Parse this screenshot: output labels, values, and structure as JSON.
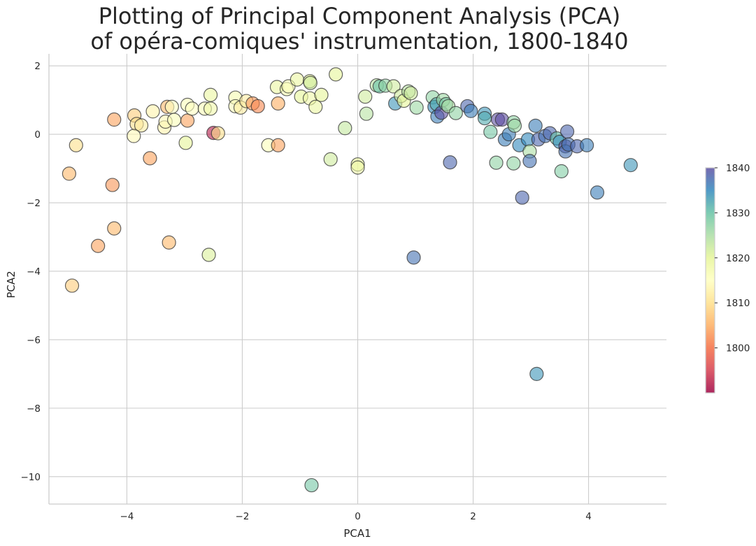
{
  "chart_data": {
    "type": "scatter",
    "title_lines": [
      "Plotting of Principal Component Analysis (PCA)",
      "of opéra-comiques' instrumentation, 1800-1840"
    ],
    "xlabel": "PCA1",
    "ylabel": "PCA2",
    "xlim": [
      -5.35,
      5.35
    ],
    "ylim": [
      -10.8,
      2.35
    ],
    "x_ticks": [
      -4,
      -2,
      0,
      2,
      4
    ],
    "x_tick_labels": [
      "−4",
      "−2",
      "0",
      "2",
      "4"
    ],
    "y_ticks": [
      2,
      0,
      -2,
      -4,
      -6,
      -8,
      -10
    ],
    "y_tick_labels": [
      "2",
      "0",
      "−2",
      "−4",
      "−6",
      "−8",
      "−10"
    ],
    "grid": true,
    "colormap": "Spectral",
    "colormap_stops": [
      "#9e0142",
      "#d53e4f",
      "#f46d43",
      "#fdae61",
      "#fee08b",
      "#ffffbf",
      "#e6f598",
      "#abdda4",
      "#66c2a5",
      "#3288bd",
      "#5e4fa2"
    ],
    "color_range": [
      1790,
      1840
    ],
    "colorbar": {
      "ticks": [
        1800,
        1810,
        1820,
        1830,
        1840
      ],
      "tick_labels": [
        "1800",
        "1810",
        "1820",
        "1830",
        "1840"
      ],
      "placement": "right"
    },
    "point_alpha": 0.6,
    "points": [
      {
        "x": -4.95,
        "y": -4.42,
        "year": 1808
      },
      {
        "x": -5.0,
        "y": -1.15,
        "year": 1806
      },
      {
        "x": -4.88,
        "y": -0.32,
        "year": 1810
      },
      {
        "x": -4.5,
        "y": -3.26,
        "year": 1804
      },
      {
        "x": -4.25,
        "y": -1.48,
        "year": 1803
      },
      {
        "x": -4.22,
        "y": -2.75,
        "year": 1806
      },
      {
        "x": -4.22,
        "y": 0.43,
        "year": 1804
      },
      {
        "x": -3.87,
        "y": 0.55,
        "year": 1808
      },
      {
        "x": -3.83,
        "y": 0.3,
        "year": 1810
      },
      {
        "x": -3.75,
        "y": 0.26,
        "year": 1812
      },
      {
        "x": -3.88,
        "y": -0.05,
        "year": 1814
      },
      {
        "x": -3.6,
        "y": -0.7,
        "year": 1804
      },
      {
        "x": -3.55,
        "y": 0.67,
        "year": 1813
      },
      {
        "x": -3.35,
        "y": 0.2,
        "year": 1813
      },
      {
        "x": -3.33,
        "y": 0.37,
        "year": 1814
      },
      {
        "x": -3.3,
        "y": 0.8,
        "year": 1806
      },
      {
        "x": -3.22,
        "y": 0.8,
        "year": 1815
      },
      {
        "x": -3.18,
        "y": 0.42,
        "year": 1816
      },
      {
        "x": -3.27,
        "y": -3.16,
        "year": 1806
      },
      {
        "x": -2.95,
        "y": 0.86,
        "year": 1816
      },
      {
        "x": -2.95,
        "y": 0.4,
        "year": 1804
      },
      {
        "x": -2.87,
        "y": 0.75,
        "year": 1815
      },
      {
        "x": -2.98,
        "y": -0.25,
        "year": 1820
      },
      {
        "x": -2.65,
        "y": 0.75,
        "year": 1816
      },
      {
        "x": -2.55,
        "y": 0.75,
        "year": 1818
      },
      {
        "x": -2.55,
        "y": 1.15,
        "year": 1819
      },
      {
        "x": -2.58,
        "y": -3.52,
        "year": 1821
      },
      {
        "x": -2.5,
        "y": 0.04,
        "year": 1792
      },
      {
        "x": -2.42,
        "y": 0.03,
        "year": 1810
      },
      {
        "x": -2.12,
        "y": 1.07,
        "year": 1817
      },
      {
        "x": -2.12,
        "y": 0.82,
        "year": 1816
      },
      {
        "x": -2.03,
        "y": 0.78,
        "year": 1812
      },
      {
        "x": -1.93,
        "y": 0.97,
        "year": 1812
      },
      {
        "x": -1.82,
        "y": 0.9,
        "year": 1803
      },
      {
        "x": -1.73,
        "y": 0.82,
        "year": 1802
      },
      {
        "x": -1.55,
        "y": -0.32,
        "year": 1816
      },
      {
        "x": -1.38,
        "y": -0.32,
        "year": 1804
      },
      {
        "x": -1.38,
        "y": 0.9,
        "year": 1805
      },
      {
        "x": -1.4,
        "y": 1.38,
        "year": 1819
      },
      {
        "x": -1.23,
        "y": 1.32,
        "year": 1817
      },
      {
        "x": -1.2,
        "y": 1.4,
        "year": 1816
      },
      {
        "x": -1.05,
        "y": 1.6,
        "year": 1819
      },
      {
        "x": -0.98,
        "y": 1.1,
        "year": 1820
      },
      {
        "x": -0.83,
        "y": 1.55,
        "year": 1820
      },
      {
        "x": -0.82,
        "y": 1.5,
        "year": 1822
      },
      {
        "x": -0.83,
        "y": 1.05,
        "year": 1818
      },
      {
        "x": -0.73,
        "y": 0.8,
        "year": 1819
      },
      {
        "x": -0.63,
        "y": 1.15,
        "year": 1820
      },
      {
        "x": -0.47,
        "y": -0.73,
        "year": 1822
      },
      {
        "x": -0.38,
        "y": 1.75,
        "year": 1820
      },
      {
        "x": -0.22,
        "y": 0.18,
        "year": 1823
      },
      {
        "x": 0.0,
        "y": -0.88,
        "year": 1820
      },
      {
        "x": 0.0,
        "y": -0.97,
        "year": 1818
      },
      {
        "x": 0.13,
        "y": 1.1,
        "year": 1822
      },
      {
        "x": 0.15,
        "y": 0.6,
        "year": 1824
      },
      {
        "x": -0.8,
        "y": -10.25,
        "year": 1829
      },
      {
        "x": 0.33,
        "y": 1.43,
        "year": 1824
      },
      {
        "x": 0.38,
        "y": 1.4,
        "year": 1830
      },
      {
        "x": 0.48,
        "y": 1.42,
        "year": 1827
      },
      {
        "x": 0.62,
        "y": 1.4,
        "year": 1822
      },
      {
        "x": 0.65,
        "y": 0.9,
        "year": 1834
      },
      {
        "x": 0.75,
        "y": 1.12,
        "year": 1822
      },
      {
        "x": 0.8,
        "y": 0.98,
        "year": 1820
      },
      {
        "x": 0.88,
        "y": 1.25,
        "year": 1824
      },
      {
        "x": 0.92,
        "y": 1.2,
        "year": 1822
      },
      {
        "x": 0.97,
        "y": -3.6,
        "year": 1837
      },
      {
        "x": 1.02,
        "y": 0.78,
        "year": 1826
      },
      {
        "x": 1.3,
        "y": 1.08,
        "year": 1827
      },
      {
        "x": 1.33,
        "y": 0.8,
        "year": 1835
      },
      {
        "x": 1.37,
        "y": 0.88,
        "year": 1832
      },
      {
        "x": 1.38,
        "y": 0.52,
        "year": 1836
      },
      {
        "x": 1.45,
        "y": 0.63,
        "year": 1840
      },
      {
        "x": 1.48,
        "y": 1.0,
        "year": 1826
      },
      {
        "x": 1.53,
        "y": 0.88,
        "year": 1829
      },
      {
        "x": 1.57,
        "y": 0.82,
        "year": 1825
      },
      {
        "x": 1.6,
        "y": -0.82,
        "year": 1838
      },
      {
        "x": 1.7,
        "y": 0.62,
        "year": 1827
      },
      {
        "x": 1.9,
        "y": 0.82,
        "year": 1838
      },
      {
        "x": 1.96,
        "y": 0.68,
        "year": 1836
      },
      {
        "x": 2.2,
        "y": 0.6,
        "year": 1834
      },
      {
        "x": 2.2,
        "y": 0.47,
        "year": 1832
      },
      {
        "x": 2.3,
        "y": 0.07,
        "year": 1829
      },
      {
        "x": 2.4,
        "y": -0.83,
        "year": 1827
      },
      {
        "x": 2.43,
        "y": 0.43,
        "year": 1840
      },
      {
        "x": 2.5,
        "y": 0.43,
        "year": 1840
      },
      {
        "x": 2.55,
        "y": -0.15,
        "year": 1836
      },
      {
        "x": 2.62,
        "y": 0.0,
        "year": 1836
      },
      {
        "x": 2.7,
        "y": 0.35,
        "year": 1827
      },
      {
        "x": 2.72,
        "y": 0.25,
        "year": 1826
      },
      {
        "x": 2.7,
        "y": -0.85,
        "year": 1827
      },
      {
        "x": 2.8,
        "y": -0.32,
        "year": 1835
      },
      {
        "x": 2.85,
        "y": -1.85,
        "year": 1838
      },
      {
        "x": 2.95,
        "y": -0.15,
        "year": 1835
      },
      {
        "x": 2.98,
        "y": -0.5,
        "year": 1825
      },
      {
        "x": 2.98,
        "y": -0.78,
        "year": 1837
      },
      {
        "x": 3.08,
        "y": 0.25,
        "year": 1836
      },
      {
        "x": 3.1,
        "y": -7.0,
        "year": 1834
      },
      {
        "x": 3.13,
        "y": -0.15,
        "year": 1838
      },
      {
        "x": 3.25,
        "y": -0.05,
        "year": 1837
      },
      {
        "x": 3.33,
        "y": 0.03,
        "year": 1838
      },
      {
        "x": 3.45,
        "y": -0.12,
        "year": 1830
      },
      {
        "x": 3.5,
        "y": -0.22,
        "year": 1835
      },
      {
        "x": 3.53,
        "y": -1.08,
        "year": 1828
      },
      {
        "x": 3.6,
        "y": -0.35,
        "year": 1840
      },
      {
        "x": 3.6,
        "y": -0.5,
        "year": 1837
      },
      {
        "x": 3.63,
        "y": 0.08,
        "year": 1838
      },
      {
        "x": 3.65,
        "y": -0.3,
        "year": 1837
      },
      {
        "x": 3.8,
        "y": -0.35,
        "year": 1838
      },
      {
        "x": 3.97,
        "y": -0.32,
        "year": 1836
      },
      {
        "x": 4.15,
        "y": -1.7,
        "year": 1836
      },
      {
        "x": 4.73,
        "y": -0.9,
        "year": 1834
      }
    ]
  }
}
